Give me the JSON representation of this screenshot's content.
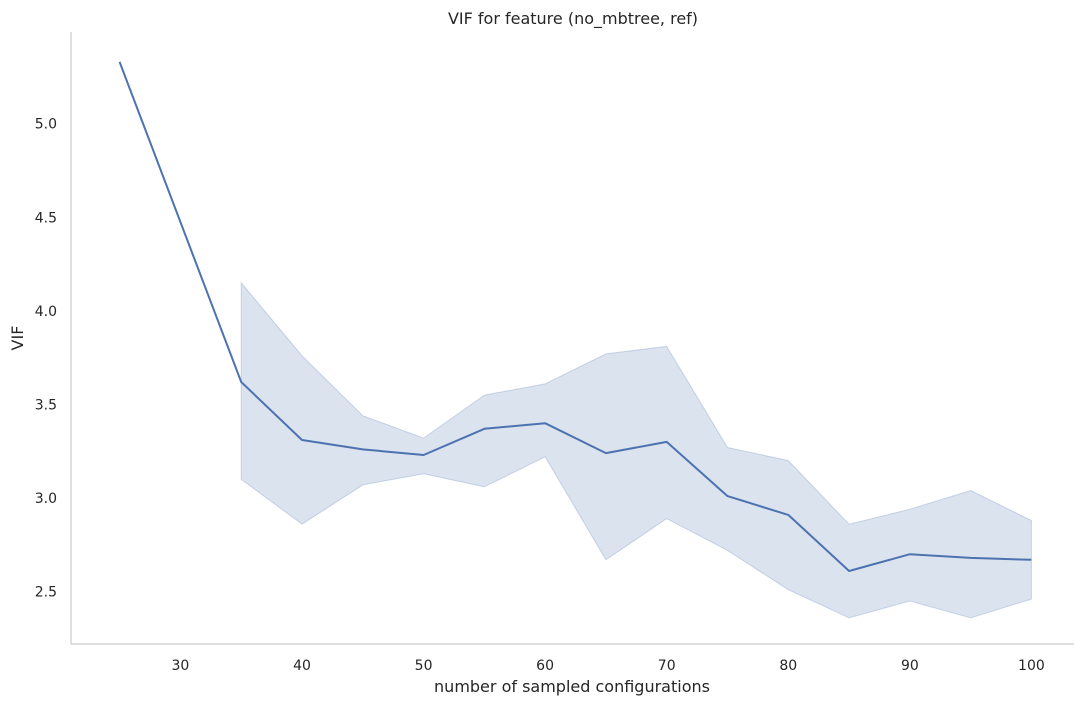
{
  "chart_data": {
    "type": "line",
    "title": "VIF for feature (no_mbtree, ref)",
    "xlabel": "number of sampled configurations",
    "ylabel": "VIF",
    "xlim": [
      21,
      103.5
    ],
    "ylim": [
      2.22,
      5.49
    ],
    "x_ticks": [
      30,
      40,
      50,
      60,
      70,
      80,
      90,
      100
    ],
    "y_ticks": [
      2.5,
      3.0,
      3.5,
      4.0,
      4.5,
      5.0
    ],
    "x_tick_labels": [
      "30",
      "40",
      "50",
      "60",
      "70",
      "80",
      "90",
      "100"
    ],
    "y_tick_labels": [
      "2.5",
      "3.0",
      "3.5",
      "4.0",
      "4.5",
      "5.0"
    ],
    "grid": false,
    "line_color": "#4c72b0",
    "band_color": "#4c72b0",
    "band_opacity": 0.2,
    "series": [
      {
        "x": [
          25,
          35,
          40,
          45,
          50,
          55,
          60,
          65,
          70,
          75,
          80,
          85,
          90,
          95,
          100
        ],
        "y": [
          5.33,
          3.62,
          3.31,
          3.26,
          3.23,
          3.37,
          3.4,
          3.24,
          3.3,
          3.01,
          2.91,
          2.61,
          2.7,
          2.68,
          2.67
        ],
        "ci_lower": [
          null,
          3.1,
          2.86,
          3.07,
          3.13,
          3.06,
          3.22,
          2.67,
          2.89,
          2.72,
          2.51,
          2.36,
          2.45,
          2.36,
          2.46
        ],
        "ci_upper": [
          null,
          4.15,
          3.76,
          3.44,
          3.32,
          3.55,
          3.61,
          3.77,
          3.81,
          3.27,
          3.2,
          2.86,
          2.94,
          3.04,
          2.88
        ]
      }
    ]
  }
}
